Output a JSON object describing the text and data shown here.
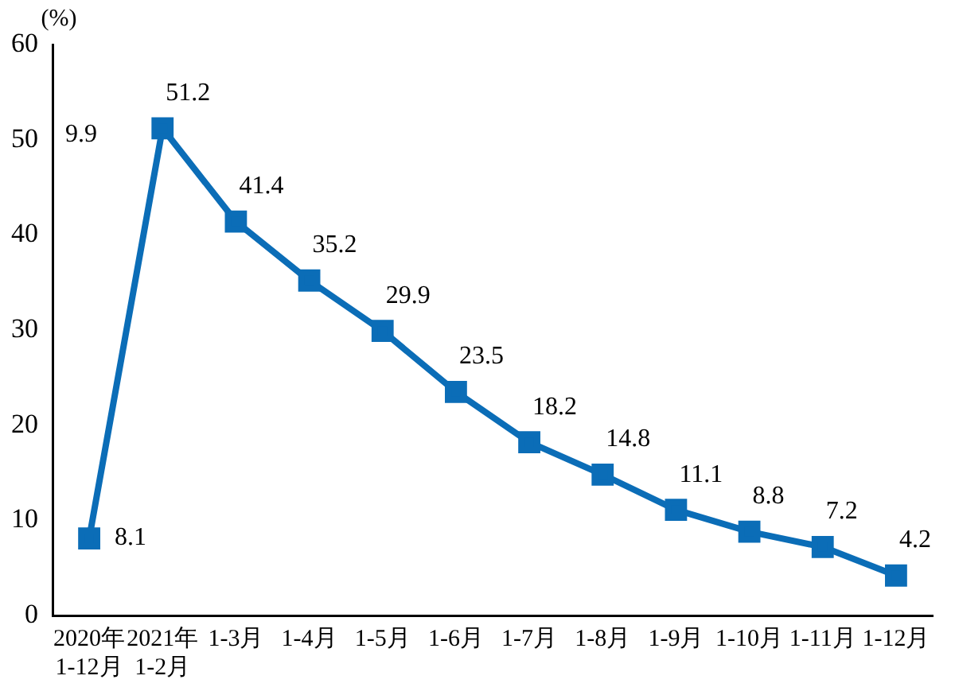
{
  "chart_data": {
    "type": "line",
    "ylabel": "(%)",
    "categories": [
      "2020年\n1-12月",
      "2021年\n1-2月",
      "1-3月",
      "1-4月",
      "1-5月",
      "1-6月",
      "1-7月",
      "1-8月",
      "1-9月",
      "1-10月",
      "1-11月",
      "1-12月"
    ],
    "series": [
      {
        "color": "#0b6db7",
        "values": [
          8.1,
          51.2,
          41.4,
          35.2,
          29.9,
          23.5,
          18.2,
          14.8,
          11.1,
          8.8,
          7.2,
          4.2
        ]
      }
    ],
    "ylim": [
      0,
      60
    ],
    "yticks": [
      0,
      10,
      20,
      30,
      40,
      50,
      60
    ],
    "grid": false,
    "legend": false,
    "marker": "square",
    "line_style": "solid",
    "data_labels": true,
    "annotations": [
      "9.9"
    ]
  }
}
